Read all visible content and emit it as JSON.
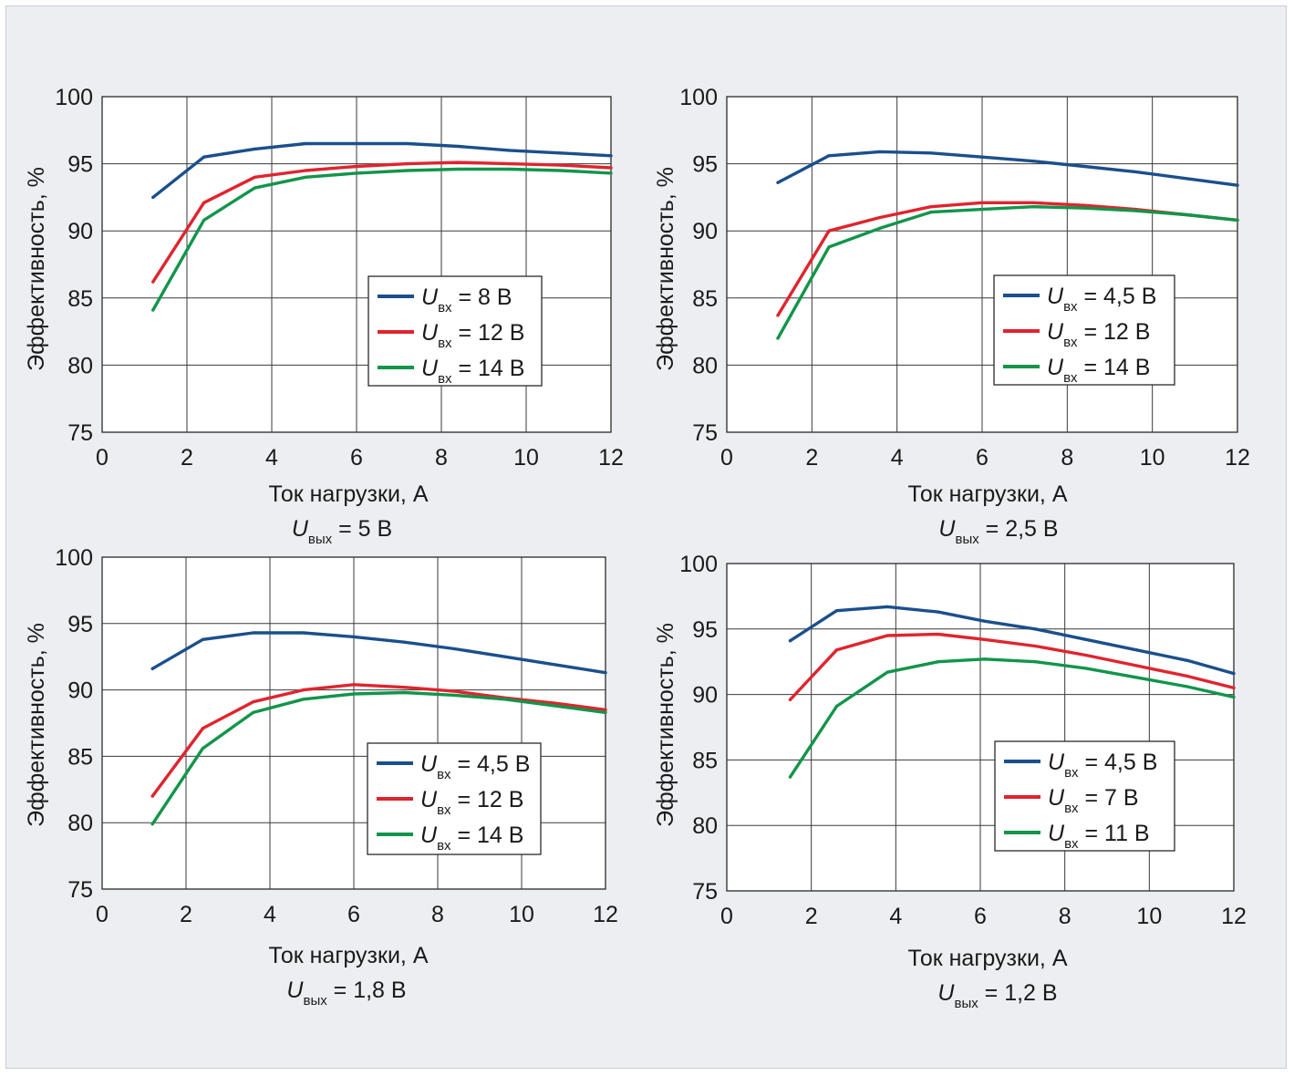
{
  "chart_data": [
    {
      "type": "line",
      "xlabel": "Ток нагрузки, А",
      "ylabel": "Эффективность, %",
      "caption": {
        "symbol": "U",
        "sub": "вых",
        "text": " = 5 В"
      },
      "xlim": [
        0,
        12
      ],
      "ylim": [
        75,
        100
      ],
      "xticks": [
        "0",
        "2",
        "4",
        "6",
        "8",
        "10",
        "12"
      ],
      "yticks": [
        "75",
        "80",
        "85",
        "90",
        "95",
        "100"
      ],
      "grid": true,
      "series": [
        {
          "name": "U_вх = 8 В",
          "symbol": "U",
          "sub": "вх",
          "text": " = 8 В",
          "color": "#1b4f8c",
          "x": [
            1.2,
            2.4,
            3.6,
            4.8,
            6,
            7.2,
            8.4,
            9.6,
            10.8,
            12
          ],
          "y": [
            92.5,
            95.5,
            96.1,
            96.5,
            96.5,
            96.5,
            96.3,
            96.0,
            95.8,
            95.6
          ]
        },
        {
          "name": "U_вх = 12 В",
          "symbol": "U",
          "sub": "вх",
          "text": " = 12 В",
          "color": "#e0242e",
          "x": [
            1.2,
            2.4,
            3.6,
            4.8,
            6,
            7.2,
            8.4,
            9.6,
            10.8,
            12
          ],
          "y": [
            86.2,
            92.1,
            94.0,
            94.5,
            94.8,
            95.0,
            95.1,
            95.0,
            94.9,
            94.7
          ]
        },
        {
          "name": "U_вх = 14 В",
          "symbol": "U",
          "sub": "вх",
          "text": " = 14 В",
          "color": "#12954a",
          "x": [
            1.2,
            2.4,
            3.6,
            4.8,
            6,
            7.2,
            8.4,
            9.6,
            10.8,
            12
          ],
          "y": [
            84.1,
            90.8,
            93.2,
            94.0,
            94.3,
            94.5,
            94.6,
            94.6,
            94.5,
            94.3
          ]
        }
      ]
    },
    {
      "type": "line",
      "xlabel": "Ток нагрузки, А",
      "ylabel": "Эффективность, %",
      "caption": {
        "symbol": "U",
        "sub": "вых",
        "text": " = 2,5 В"
      },
      "xlim": [
        0,
        12
      ],
      "ylim": [
        75,
        100
      ],
      "xticks": [
        "0",
        "2",
        "4",
        "6",
        "8",
        "10",
        "12"
      ],
      "yticks": [
        "75",
        "80",
        "85",
        "90",
        "95",
        "100"
      ],
      "grid": true,
      "series": [
        {
          "name": "U_вх = 4,5 В",
          "symbol": "U",
          "sub": "вх",
          "text": " = 4,5 В",
          "color": "#1b4f8c",
          "x": [
            1.2,
            2.4,
            3.6,
            4.8,
            6,
            7.2,
            8.4,
            9.6,
            10.8,
            12
          ],
          "y": [
            93.6,
            95.6,
            95.9,
            95.8,
            95.5,
            95.2,
            94.8,
            94.4,
            93.9,
            93.4
          ]
        },
        {
          "name": "U_вх = 12 В",
          "symbol": "U",
          "sub": "вх",
          "text": " = 12 В",
          "color": "#e0242e",
          "x": [
            1.2,
            2.4,
            3.6,
            4.8,
            6,
            7.2,
            8.4,
            9.6,
            10.8,
            12
          ],
          "y": [
            83.7,
            90.0,
            91.0,
            91.8,
            92.1,
            92.1,
            91.9,
            91.6,
            91.2,
            90.8
          ]
        },
        {
          "name": "U_вх = 14 В",
          "symbol": "U",
          "sub": "вх",
          "text": " = 14 В",
          "color": "#12954a",
          "x": [
            1.2,
            2.4,
            3.6,
            4.8,
            6,
            7.2,
            8.4,
            9.6,
            10.8,
            12
          ],
          "y": [
            82.0,
            88.8,
            90.2,
            91.4,
            91.6,
            91.8,
            91.7,
            91.5,
            91.2,
            90.8
          ]
        }
      ]
    },
    {
      "type": "line",
      "xlabel": "Ток нагрузки, А",
      "ylabel": "Эффективность, %",
      "caption": {
        "symbol": "U",
        "sub": "вых",
        "text": " = 1,8 В"
      },
      "xlim": [
        0,
        12
      ],
      "ylim": [
        75,
        100
      ],
      "xticks": [
        "0",
        "2",
        "4",
        "6",
        "8",
        "10",
        "12"
      ],
      "yticks": [
        "75",
        "80",
        "85",
        "90",
        "95",
        "100"
      ],
      "grid": true,
      "series": [
        {
          "name": "U_вх = 4,5 В",
          "symbol": "U",
          "sub": "вх",
          "text": " = 4,5 В",
          "color": "#1b4f8c",
          "x": [
            1.2,
            2.4,
            3.6,
            4.8,
            6,
            7.2,
            8.4,
            9.6,
            10.8,
            12
          ],
          "y": [
            91.6,
            93.8,
            94.3,
            94.3,
            94.0,
            93.6,
            93.1,
            92.5,
            91.9,
            91.3
          ]
        },
        {
          "name": "U_вх = 12 В",
          "symbol": "U",
          "sub": "вх",
          "text": " = 12 В",
          "color": "#e0242e",
          "x": [
            1.2,
            2.4,
            3.6,
            4.8,
            6,
            7.2,
            8.4,
            9.6,
            10.8,
            12
          ],
          "y": [
            82.0,
            87.1,
            89.1,
            90.0,
            90.4,
            90.2,
            89.9,
            89.4,
            89.0,
            88.5
          ]
        },
        {
          "name": "U_вх = 14 В",
          "symbol": "U",
          "sub": "вх",
          "text": " = 14 В",
          "color": "#12954a",
          "x": [
            1.2,
            2.4,
            3.6,
            4.8,
            6,
            7.2,
            8.4,
            9.6,
            10.8,
            12
          ],
          "y": [
            79.9,
            85.6,
            88.3,
            89.3,
            89.7,
            89.8,
            89.6,
            89.3,
            88.8,
            88.3
          ]
        }
      ]
    },
    {
      "type": "line",
      "xlabel": "Ток нагрузки, А",
      "ylabel": "Эффективность, %",
      "caption": {
        "symbol": "U",
        "sub": "вых",
        "text": " = 1,2 В"
      },
      "xlim": [
        0,
        12
      ],
      "ylim": [
        75,
        100
      ],
      "xticks": [
        "0",
        "2",
        "4",
        "6",
        "8",
        "10",
        "12"
      ],
      "yticks": [
        "75",
        "80",
        "85",
        "90",
        "95",
        "100"
      ],
      "grid": true,
      "series": [
        {
          "name": "U_вх = 4,5 В",
          "symbol": "U",
          "sub": "вх",
          "text": " = 4,5 В",
          "color": "#1b4f8c",
          "x": [
            1.5,
            2.6,
            3.8,
            5,
            6.1,
            7.3,
            8.5,
            9.7,
            10.9,
            12
          ],
          "y": [
            94.1,
            96.4,
            96.7,
            96.3,
            95.6,
            95.0,
            94.2,
            93.4,
            92.6,
            91.6
          ]
        },
        {
          "name": "U_вх = 7 В",
          "symbol": "U",
          "sub": "вх",
          "text": " = 7 В",
          "color": "#e0242e",
          "x": [
            1.5,
            2.6,
            3.8,
            5,
            6.1,
            7.3,
            8.5,
            9.7,
            10.9,
            12
          ],
          "y": [
            89.6,
            93.4,
            94.5,
            94.6,
            94.2,
            93.7,
            93.0,
            92.2,
            91.4,
            90.5
          ]
        },
        {
          "name": "U_вх = 11 В",
          "symbol": "U",
          "sub": "вх",
          "text": " = 11 В",
          "color": "#12954a",
          "x": [
            1.5,
            2.6,
            3.8,
            5,
            6.1,
            7.3,
            8.5,
            9.7,
            10.9,
            12
          ],
          "y": [
            83.7,
            89.1,
            91.7,
            92.5,
            92.7,
            92.5,
            92.0,
            91.3,
            90.6,
            89.8
          ]
        }
      ]
    }
  ]
}
